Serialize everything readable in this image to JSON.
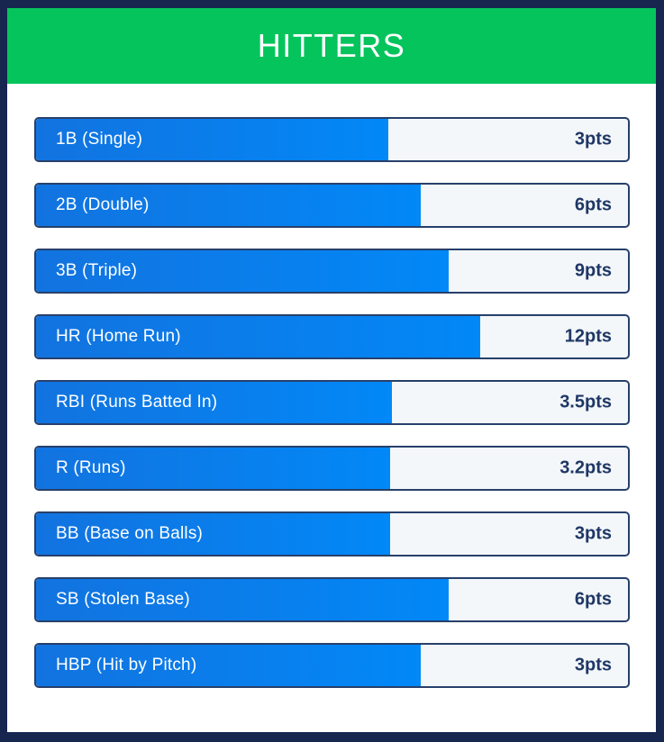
{
  "header": {
    "title": "HITTERS"
  },
  "colors": {
    "frame_navy": "#17264E",
    "header_green": "#05C45C",
    "bar_blue_start": "#1273DF",
    "bar_blue_end": "#0288F7",
    "row_track": "#F4F7FA",
    "row_border": "#27406B",
    "points_text": "#1E3765",
    "label_text": "#FFFFFF"
  },
  "chart_data": {
    "type": "bar",
    "orientation": "horizontal",
    "title": "HITTERS",
    "value_suffix": "pts",
    "legend": "none",
    "grid": false,
    "categories": [
      "1B (Single)",
      "2B (Double)",
      "3B (Triple)",
      "HR (Home Run)",
      "RBI (Runs Batted In)",
      "R (Runs)",
      "BB (Base on Balls)",
      "SB (Stolen Base)",
      "HBP (Hit by Pitch)"
    ],
    "values": [
      3,
      6,
      9,
      12,
      3.5,
      3.2,
      3,
      6,
      3
    ],
    "bars": [
      {
        "label": "1B (Single)",
        "value": 3,
        "value_label": "3pts",
        "fill_percent": 59.5
      },
      {
        "label": "2B (Double)",
        "value": 6,
        "value_label": "6pts",
        "fill_percent": 65.0
      },
      {
        "label": "3B (Triple)",
        "value": 9,
        "value_label": "9pts",
        "fill_percent": 69.7
      },
      {
        "label": "HR (Home Run)",
        "value": 12,
        "value_label": "12pts",
        "fill_percent": 75.0
      },
      {
        "label": "RBI (Runs Batted In)",
        "value": 3.5,
        "value_label": "3.5pts",
        "fill_percent": 60.1
      },
      {
        "label": "R (Runs)",
        "value": 3.2,
        "value_label": "3.2pts",
        "fill_percent": 59.8
      },
      {
        "label": "BB (Base on Balls)",
        "value": 3,
        "value_label": "3pts",
        "fill_percent": 59.8
      },
      {
        "label": "SB (Stolen Base)",
        "value": 6,
        "value_label": "6pts",
        "fill_percent": 69.7
      },
      {
        "label": "HBP (Hit by Pitch)",
        "value": 3,
        "value_label": "3pts",
        "fill_percent": 65.0
      }
    ]
  }
}
